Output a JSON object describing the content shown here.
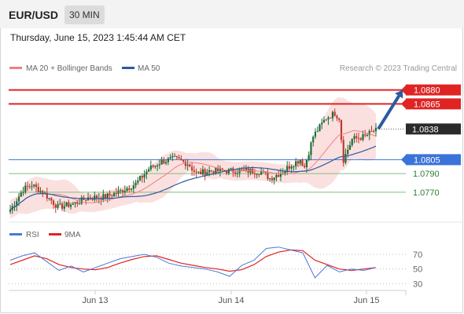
{
  "header": {
    "pair": "EUR/USD",
    "timeframe": "30 MIN"
  },
  "timestamp": "Thursday, June 15, 2023 1:45:44 AM CET",
  "colors": {
    "bull": "#1f6b35",
    "bear": "#c0392b",
    "ma20": "#f08080",
    "band": "#f9cccc",
    "ma50": "#2c5b9e",
    "resistance": "#e02424",
    "support": "#3b73d9",
    "green_level": "#7fbf7f",
    "arrow": "#2c5b9e",
    "rsi": "#4a78d8",
    "rsi_ma": "#e02424"
  },
  "chart_data": [
    {
      "type": "candlestick",
      "legend": [
        "MA 20 + Bollinger Bands",
        "MA 50"
      ],
      "watermark": "Research © 2023 Trading Central",
      "ylim": [
        1.0742,
        1.0894
      ],
      "x_ticks": [
        "Jun 13",
        "Jun 14",
        "Jun 15"
      ],
      "levels": [
        {
          "label": "1.0880",
          "value": 1.088,
          "kind": "resistance"
        },
        {
          "label": "1.0865",
          "value": 1.0865,
          "kind": "resistance"
        },
        {
          "label": "1.0838",
          "value": 1.0838,
          "kind": "last"
        },
        {
          "label": "1.0805",
          "value": 1.0805,
          "kind": "pivot"
        },
        {
          "label": "1.0790",
          "value": 1.079,
          "kind": "support"
        },
        {
          "label": "1.0770",
          "value": 1.077,
          "kind": "support"
        }
      ],
      "arrow": {
        "from_price": 1.0838,
        "to_price": 1.088
      },
      "candles_seed": 7,
      "path": [
        [
          0,
          1.0751
        ],
        [
          6,
          1.0773
        ],
        [
          10,
          1.0778
        ],
        [
          16,
          1.0768
        ],
        [
          22,
          1.0754
        ],
        [
          30,
          1.0758
        ],
        [
          36,
          1.0764
        ],
        [
          44,
          1.0765
        ],
        [
          50,
          1.077
        ],
        [
          58,
          1.0779
        ],
        [
          64,
          1.0795
        ],
        [
          70,
          1.0803
        ],
        [
          76,
          1.0806
        ],
        [
          82,
          1.0801
        ],
        [
          86,
          1.079
        ],
        [
          92,
          1.0793
        ],
        [
          100,
          1.0793
        ],
        [
          110,
          1.0793
        ],
        [
          116,
          1.0792
        ],
        [
          120,
          1.0785
        ],
        [
          126,
          1.0792
        ],
        [
          130,
          1.08
        ],
        [
          134,
          1.0805
        ],
        [
          136,
          1.0797
        ],
        [
          140,
          1.083
        ],
        [
          146,
          1.085
        ],
        [
          150,
          1.0855
        ],
        [
          152,
          1.085
        ],
        [
          154,
          1.0805
        ],
        [
          158,
          1.0827
        ],
        [
          164,
          1.083
        ],
        [
          168,
          1.0836
        ]
      ]
    },
    {
      "type": "line",
      "legend": [
        "RSI",
        "9MA"
      ],
      "ylim": [
        25,
        85
      ],
      "y_ticks": [
        70,
        50,
        30
      ],
      "rsi": [
        62,
        68,
        72,
        60,
        48,
        54,
        46,
        52,
        58,
        64,
        67,
        70,
        66,
        58,
        54,
        52,
        50,
        46,
        40,
        55,
        62,
        78,
        80,
        76,
        72,
        38,
        55,
        46,
        50,
        48,
        52
      ],
      "ma9": [
        56,
        62,
        68,
        64,
        56,
        52,
        50,
        49,
        52,
        58,
        63,
        67,
        68,
        63,
        58,
        55,
        52,
        50,
        47,
        49,
        56,
        67,
        73,
        76,
        75,
        62,
        56,
        50,
        48,
        50,
        52
      ]
    }
  ]
}
